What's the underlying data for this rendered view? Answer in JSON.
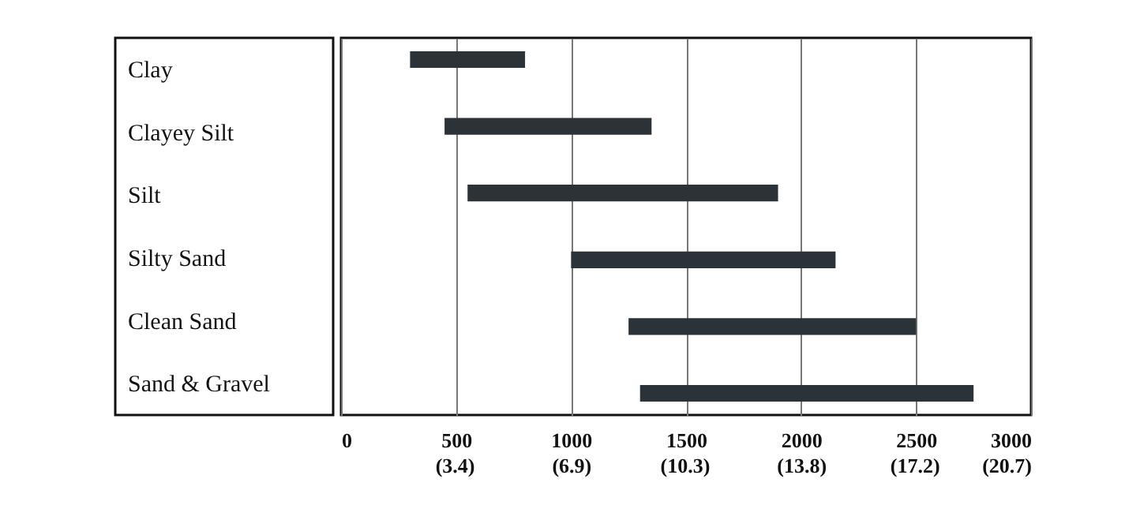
{
  "chart_data": {
    "type": "bar",
    "orientation": "horizontal",
    "categories": [
      "Clay",
      "Clayey Silt",
      "Silt",
      "Silty Sand",
      "Clean Sand",
      "Sand & Gravel"
    ],
    "base": [
      300,
      450,
      550,
      1000,
      1250,
      1300
    ],
    "values": [
      500,
      900,
      1350,
      1150,
      1250,
      1450
    ],
    "color": "#2b3338",
    "xlim": [
      0,
      3000
    ],
    "xticks": [
      0,
      500,
      1000,
      1500,
      2000,
      2500,
      3000
    ],
    "x2lim": [
      0,
      20.7
    ],
    "x2ticks": [
      {
        "value": 3.4,
        "label": "(3.4)"
      },
      {
        "value": 6.9,
        "label": "(6.9)"
      },
      {
        "value": 10.3,
        "label": "(10.3)"
      },
      {
        "value": 13.8,
        "label": "(13.8)"
      },
      {
        "value": 17.2,
        "label": "(17.2)"
      },
      {
        "value": 20.7,
        "label": "(20.7)"
      }
    ],
    "grid": "x"
  }
}
